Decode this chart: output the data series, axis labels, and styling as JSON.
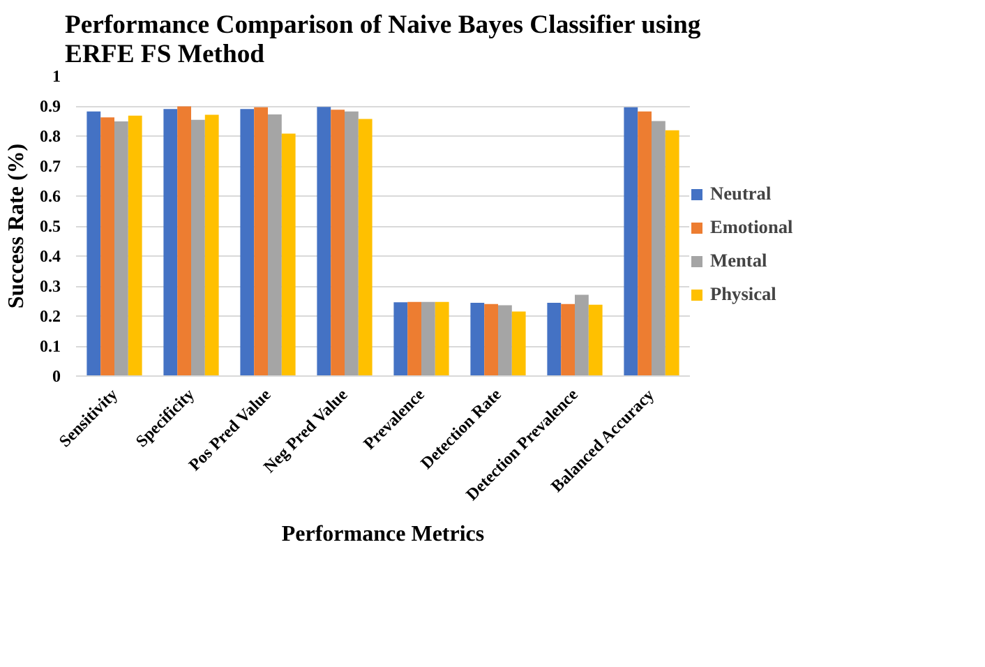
{
  "chart_data": {
    "type": "bar",
    "title": "Performance Comparison of Naive Bayes Classifier using\nERFE FS Method",
    "xlabel": "Performance Metrics",
    "ylabel": "Success Rate (%)",
    "categories": [
      "Sensitivity",
      "Specificity",
      "Pos Pred Value",
      "Neg Pred Value",
      "Prevalence",
      "Detection Rate",
      "Detection Prevalence",
      "Balanced Accuracy"
    ],
    "series": [
      {
        "name": "Neutral",
        "color": "#4472c4",
        "values": [
          0.882,
          0.89,
          0.89,
          0.897,
          0.246,
          0.244,
          0.244,
          0.896
        ]
      },
      {
        "name": "Emotional",
        "color": "#ed7d31",
        "values": [
          0.862,
          0.899,
          0.896,
          0.888,
          0.247,
          0.24,
          0.24,
          0.882
        ]
      },
      {
        "name": "Mental",
        "color": "#a5a5a5",
        "values": [
          0.849,
          0.854,
          0.872,
          0.882,
          0.247,
          0.236,
          0.271,
          0.85
        ]
      },
      {
        "name": "Physical",
        "color": "#ffc000",
        "values": [
          0.868,
          0.871,
          0.808,
          0.857,
          0.247,
          0.215,
          0.238,
          0.819
        ]
      }
    ],
    "ylim": [
      0,
      1
    ],
    "yticks": [
      0,
      0.1,
      0.2,
      0.3,
      0.4,
      0.5,
      0.6,
      0.7,
      0.8,
      0.9,
      1
    ],
    "grid": "y",
    "legend": "right"
  }
}
